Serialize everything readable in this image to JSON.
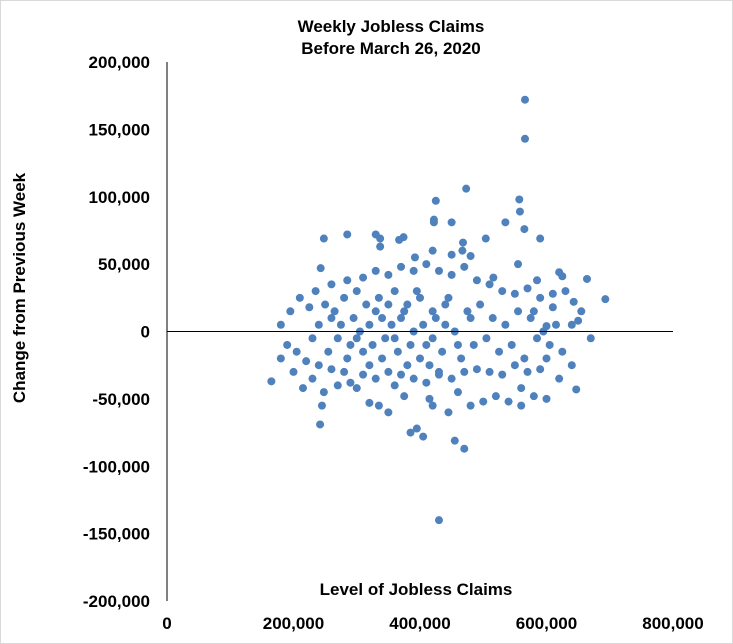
{
  "chart_data": {
    "type": "scatter",
    "title": [
      "Weekly Jobless Claims",
      "Before March 26, 2020"
    ],
    "xlabel": "Level of Jobless Claims",
    "ylabel": "Change from Previous Week",
    "xlim": [
      0,
      800000
    ],
    "ylim": [
      -200000,
      200000
    ],
    "x_ticks": [
      0,
      200000,
      400000,
      600000,
      800000
    ],
    "x_tick_labels": [
      "0",
      "200,000",
      "400,000",
      "600,000",
      "800,000"
    ],
    "y_ticks": [
      200000,
      150000,
      100000,
      50000,
      0,
      -50000,
      -100000,
      -150000,
      -200000
    ],
    "y_tick_labels": [
      "200,000",
      "150,000",
      "100,000",
      "50,000",
      "0",
      "-50,000",
      "-100,000",
      "-150,000",
      "-200,000"
    ],
    "grid": false,
    "legend": "none",
    "marker_color": "#4f81bd",
    "series": [
      {
        "values": [
          [
            566000,
            172000
          ],
          [
            566000,
            143000
          ],
          [
            473000,
            106000
          ],
          [
            557000,
            98000
          ],
          [
            425000,
            97000
          ],
          [
            558000,
            89000
          ],
          [
            422000,
            83000
          ],
          [
            422000,
            81000
          ],
          [
            450000,
            81000
          ],
          [
            535000,
            81000
          ],
          [
            565000,
            76000
          ],
          [
            285000,
            72000
          ],
          [
            330000,
            72000
          ],
          [
            374000,
            70000
          ],
          [
            367000,
            68000
          ],
          [
            248000,
            69000
          ],
          [
            337000,
            69000
          ],
          [
            337000,
            63000
          ],
          [
            468000,
            66000
          ],
          [
            504000,
            69000
          ],
          [
            590000,
            69000
          ],
          [
            467000,
            60000
          ],
          [
            420000,
            60000
          ],
          [
            450000,
            57000
          ],
          [
            480000,
            56000
          ],
          [
            392000,
            55000
          ],
          [
            555000,
            50000
          ],
          [
            243000,
            47000
          ],
          [
            620000,
            44000
          ],
          [
            625000,
            41000
          ],
          [
            664000,
            39000
          ],
          [
            516000,
            40000
          ],
          [
            585000,
            38000
          ],
          [
            693000,
            24000
          ],
          [
            643000,
            22000
          ],
          [
            610000,
            18000
          ],
          [
            580000,
            15000
          ],
          [
            650000,
            8000
          ],
          [
            640000,
            5000
          ],
          [
            600000,
            4000
          ],
          [
            250000,
            20000
          ],
          [
            280000,
            25000
          ],
          [
            300000,
            30000
          ],
          [
            260000,
            10000
          ],
          [
            270000,
            -5000
          ],
          [
            290000,
            -10000
          ],
          [
            310000,
            -15000
          ],
          [
            320000,
            5000
          ],
          [
            330000,
            15000
          ],
          [
            340000,
            -20000
          ],
          [
            350000,
            20000
          ],
          [
            360000,
            -5000
          ],
          [
            370000,
            10000
          ],
          [
            380000,
            -25000
          ],
          [
            390000,
            0
          ],
          [
            400000,
            25000
          ],
          [
            410000,
            -10000
          ],
          [
            420000,
            15000
          ],
          [
            430000,
            -30000
          ],
          [
            440000,
            5000
          ],
          [
            300000,
            -5000
          ],
          [
            320000,
            -25000
          ],
          [
            340000,
            10000
          ],
          [
            360000,
            30000
          ],
          [
            380000,
            20000
          ],
          [
            400000,
            -20000
          ],
          [
            420000,
            -5000
          ],
          [
            440000,
            20000
          ],
          [
            460000,
            -10000
          ],
          [
            480000,
            10000
          ],
          [
            230000,
            -5000
          ],
          [
            240000,
            5000
          ],
          [
            255000,
            -15000
          ],
          [
            265000,
            15000
          ],
          [
            275000,
            5000
          ],
          [
            285000,
            -20000
          ],
          [
            295000,
            10000
          ],
          [
            305000,
            0
          ],
          [
            315000,
            20000
          ],
          [
            325000,
            -10000
          ],
          [
            335000,
            25000
          ],
          [
            345000,
            -5000
          ],
          [
            355000,
            5000
          ],
          [
            365000,
            -15000
          ],
          [
            375000,
            15000
          ],
          [
            385000,
            -10000
          ],
          [
            395000,
            30000
          ],
          [
            405000,
            5000
          ],
          [
            415000,
            -25000
          ],
          [
            425000,
            10000
          ],
          [
            435000,
            -15000
          ],
          [
            445000,
            25000
          ],
          [
            455000,
            0
          ],
          [
            465000,
            -20000
          ],
          [
            475000,
            15000
          ],
          [
            485000,
            -10000
          ],
          [
            495000,
            20000
          ],
          [
            505000,
            -5000
          ],
          [
            515000,
            10000
          ],
          [
            525000,
            -15000
          ],
          [
            535000,
            5000
          ],
          [
            545000,
            -10000
          ],
          [
            555000,
            15000
          ],
          [
            565000,
            -20000
          ],
          [
            575000,
            10000
          ],
          [
            585000,
            -5000
          ],
          [
            595000,
            0
          ],
          [
            605000,
            -10000
          ],
          [
            615000,
            5000
          ],
          [
            625000,
            -15000
          ],
          [
            165000,
            -37000
          ],
          [
            180000,
            -20000
          ],
          [
            200000,
            -30000
          ],
          [
            215000,
            -42000
          ],
          [
            230000,
            -35000
          ],
          [
            245000,
            -55000
          ],
          [
            248000,
            -45000
          ],
          [
            242000,
            -69000
          ],
          [
            270000,
            -40000
          ],
          [
            290000,
            -38000
          ],
          [
            300000,
            -42000
          ],
          [
            320000,
            -53000
          ],
          [
            335000,
            -55000
          ],
          [
            350000,
            -60000
          ],
          [
            360000,
            -40000
          ],
          [
            375000,
            -48000
          ],
          [
            385000,
            -75000
          ],
          [
            395000,
            -72000
          ],
          [
            405000,
            -78000
          ],
          [
            415000,
            -50000
          ],
          [
            420000,
            -55000
          ],
          [
            455000,
            -81000
          ],
          [
            470000,
            -87000
          ],
          [
            430000,
            -140000
          ],
          [
            445000,
            -60000
          ],
          [
            460000,
            -45000
          ],
          [
            480000,
            -55000
          ],
          [
            500000,
            -52000
          ],
          [
            520000,
            -48000
          ],
          [
            540000,
            -52000
          ],
          [
            560000,
            -55000
          ],
          [
            580000,
            -48000
          ],
          [
            600000,
            -50000
          ],
          [
            560000,
            -42000
          ],
          [
            647000,
            -43000
          ],
          [
            620000,
            -35000
          ],
          [
            590000,
            -28000
          ],
          [
            570000,
            -30000
          ],
          [
            550000,
            -25000
          ],
          [
            530000,
            -32000
          ],
          [
            510000,
            -30000
          ],
          [
            490000,
            -28000
          ],
          [
            470000,
            -30000
          ],
          [
            450000,
            -35000
          ],
          [
            430000,
            -32000
          ],
          [
            410000,
            -38000
          ],
          [
            390000,
            -35000
          ],
          [
            370000,
            -32000
          ],
          [
            350000,
            -30000
          ],
          [
            330000,
            -35000
          ],
          [
            310000,
            -32000
          ],
          [
            280000,
            -30000
          ],
          [
            260000,
            -28000
          ],
          [
            240000,
            -25000
          ],
          [
            220000,
            -22000
          ],
          [
            205000,
            -15000
          ],
          [
            190000,
            -10000
          ],
          [
            180000,
            5000
          ],
          [
            195000,
            15000
          ],
          [
            210000,
            25000
          ],
          [
            225000,
            18000
          ],
          [
            235000,
            30000
          ],
          [
            260000,
            35000
          ],
          [
            285000,
            38000
          ],
          [
            310000,
            40000
          ],
          [
            330000,
            45000
          ],
          [
            350000,
            42000
          ],
          [
            370000,
            48000
          ],
          [
            390000,
            45000
          ],
          [
            410000,
            50000
          ],
          [
            430000,
            45000
          ],
          [
            450000,
            42000
          ],
          [
            470000,
            48000
          ],
          [
            490000,
            38000
          ],
          [
            510000,
            35000
          ],
          [
            530000,
            30000
          ],
          [
            550000,
            28000
          ],
          [
            570000,
            32000
          ],
          [
            590000,
            25000
          ],
          [
            610000,
            28000
          ],
          [
            630000,
            30000
          ],
          [
            655000,
            15000
          ],
          [
            670000,
            -5000
          ],
          [
            600000,
            -20000
          ],
          [
            640000,
            -25000
          ]
        ]
      }
    ]
  }
}
